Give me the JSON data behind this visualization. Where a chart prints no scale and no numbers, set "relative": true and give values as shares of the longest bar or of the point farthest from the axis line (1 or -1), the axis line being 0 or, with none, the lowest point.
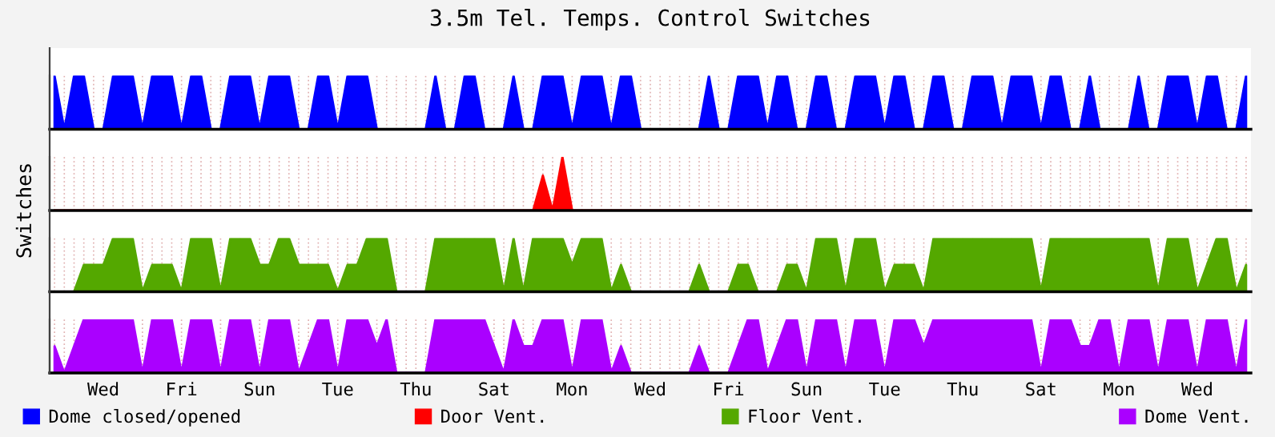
{
  "chart_data": [
    {
      "type": "area",
      "title": "3.5m Tel. Temps. Control Switches",
      "relative": true,
      "grid": "x",
      "tick_labels": false,
      "categories": [
        null,
        null,
        null,
        null,
        null,
        null,
        null,
        null,
        null,
        null,
        null,
        null,
        null,
        null,
        null,
        null,
        null,
        null,
        null,
        null,
        null,
        null,
        null,
        null,
        null,
        null,
        null,
        null,
        null,
        null,
        null,
        null,
        null,
        null,
        null,
        null,
        null,
        null,
        null,
        null,
        null,
        null,
        null,
        null,
        null,
        null,
        null,
        null,
        null,
        null,
        null,
        null,
        null,
        null,
        null,
        null,
        null,
        null,
        null,
        null,
        null,
        null,
        null,
        null,
        null,
        null,
        null,
        null,
        null,
        null,
        null,
        null,
        null,
        null,
        null,
        null,
        null,
        null,
        null,
        null,
        null,
        null,
        null,
        null,
        null,
        null,
        null,
        null,
        null,
        null,
        null,
        null,
        null,
        null,
        null,
        null,
        null,
        null,
        null,
        null,
        null,
        null,
        null,
        null,
        null,
        null,
        null,
        null,
        null,
        null,
        null,
        null,
        null,
        null,
        null,
        null,
        null,
        null,
        null,
        null,
        null,
        null,
        null
      ],
      "legend": "bottom",
      "series": [
        {
          "name": "Dome closed/opened",
          "color": "#0000ff",
          "values": [
            1,
            0,
            1,
            1,
            0,
            0,
            1,
            1,
            1,
            0,
            1,
            1,
            1,
            0,
            1,
            1,
            0,
            0,
            1,
            1,
            1,
            0,
            1,
            1,
            1,
            0,
            0,
            1,
            1,
            0,
            1,
            1,
            1,
            0,
            0,
            0,
            0,
            0,
            0,
            1,
            0,
            0,
            1,
            1,
            0,
            0,
            0,
            1,
            0,
            0,
            1,
            1,
            1,
            0,
            1,
            1,
            1,
            0,
            1,
            1,
            0,
            0,
            0,
            0,
            0,
            0,
            0,
            1,
            0,
            0,
            1,
            1,
            1,
            0,
            1,
            1,
            0,
            0,
            1,
            1,
            0,
            0,
            1,
            1,
            1,
            0,
            1,
            1,
            0,
            0,
            1,
            1,
            0,
            0,
            1,
            1,
            1,
            0,
            1,
            1,
            1,
            0,
            1,
            1,
            0,
            0,
            1,
            0,
            0,
            0,
            0,
            1,
            0,
            0,
            1,
            1,
            1,
            0,
            1,
            1,
            0,
            0,
            1
          ]
        }
      ]
    },
    {
      "type": "area",
      "ylabel": "Switches",
      "relative": true,
      "grid": "x",
      "tick_labels": false,
      "categories": [
        null,
        null,
        null,
        null,
        null,
        null,
        null,
        null,
        null,
        null,
        null,
        null,
        null,
        null,
        null,
        null,
        null,
        null,
        null,
        null,
        null,
        null,
        null,
        null,
        null,
        null,
        null,
        null,
        null,
        null,
        null,
        null,
        null,
        null,
        null,
        null,
        null,
        null,
        null,
        null,
        null,
        null,
        null,
        null,
        null,
        null,
        null,
        null,
        null,
        null,
        null,
        null,
        null,
        null,
        null,
        null,
        null,
        null,
        null,
        null,
        null,
        null,
        null,
        null,
        null,
        null,
        null,
        null,
        null,
        null,
        null,
        null,
        null,
        null,
        null,
        null,
        null,
        null,
        null,
        null,
        null,
        null,
        null,
        null,
        null,
        null,
        null,
        null,
        null,
        null,
        null,
        null,
        null,
        null,
        null,
        null,
        null,
        null,
        null,
        null,
        null,
        null,
        null,
        null,
        null,
        null,
        null,
        null,
        null,
        null,
        null,
        null,
        null,
        null,
        null,
        null,
        null,
        null,
        null,
        null,
        null,
        null,
        null
      ],
      "legend": "bottom",
      "series": [
        {
          "name": "Door Vent.",
          "color": "#ff0000",
          "values": [
            0,
            0,
            0,
            0,
            0,
            0,
            0,
            0,
            0,
            0,
            0,
            0,
            0,
            0,
            0,
            0,
            0,
            0,
            0,
            0,
            0,
            0,
            0,
            0,
            0,
            0,
            0,
            0,
            0,
            0,
            0,
            0,
            0,
            0,
            0,
            0,
            0,
            0,
            0,
            0,
            0,
            0,
            0,
            0,
            0,
            0,
            0,
            0,
            0,
            0,
            0.65,
            0,
            1,
            0,
            0,
            0,
            0,
            0,
            0,
            0,
            0,
            0,
            0,
            0,
            0,
            0,
            0,
            0,
            0,
            0,
            0,
            0,
            0,
            0,
            0,
            0,
            0,
            0,
            0,
            0,
            0,
            0,
            0,
            0,
            0,
            0,
            0,
            0,
            0,
            0,
            0,
            0,
            0,
            0,
            0,
            0,
            0,
            0,
            0,
            0,
            0,
            0,
            0,
            0,
            0,
            0,
            0,
            0,
            0,
            0,
            0,
            0,
            0,
            0,
            0,
            0,
            0,
            0,
            0,
            0,
            0,
            0,
            0
          ]
        }
      ]
    },
    {
      "type": "area",
      "relative": true,
      "grid": "x",
      "tick_labels": false,
      "categories": [
        null,
        null,
        null,
        null,
        null,
        null,
        null,
        null,
        null,
        null,
        null,
        null,
        null,
        null,
        null,
        null,
        null,
        null,
        null,
        null,
        null,
        null,
        null,
        null,
        null,
        null,
        null,
        null,
        null,
        null,
        null,
        null,
        null,
        null,
        null,
        null,
        null,
        null,
        null,
        null,
        null,
        null,
        null,
        null,
        null,
        null,
        null,
        null,
        null,
        null,
        null,
        null,
        null,
        null,
        null,
        null,
        null,
        null,
        null,
        null,
        null,
        null,
        null,
        null,
        null,
        null,
        null,
        null,
        null,
        null,
        null,
        null,
        null,
        null,
        null,
        null,
        null,
        null,
        null,
        null,
        null,
        null,
        null,
        null,
        null,
        null,
        null,
        null,
        null,
        null,
        null,
        null,
        null,
        null,
        null,
        null,
        null,
        null,
        null,
        null,
        null,
        null,
        null,
        null,
        null,
        null,
        null,
        null,
        null,
        null,
        null,
        null,
        null,
        null,
        null,
        null,
        null,
        null,
        null,
        null,
        null,
        null,
        null
      ],
      "legend": "bottom",
      "series": [
        {
          "name": "Floor Vent.",
          "color": "#54a800",
          "values": [
            0,
            0,
            0,
            0.5,
            0.5,
            0.5,
            1,
            1,
            1,
            0,
            0.5,
            0.5,
            0.5,
            0,
            1,
            1,
            1,
            0,
            1,
            1,
            1,
            0.5,
            0.5,
            1,
            1,
            0.5,
            0.5,
            0.5,
            0.5,
            0,
            0.5,
            0.5,
            1,
            1,
            1,
            0,
            0,
            0,
            0,
            1,
            1,
            1,
            1,
            1,
            1,
            1,
            0,
            1,
            0,
            1,
            1,
            1,
            1,
            0.5,
            1,
            1,
            1,
            0,
            0.5,
            0,
            0,
            0,
            0,
            0,
            0,
            0,
            0.5,
            0,
            0,
            0,
            0.5,
            0.5,
            0,
            0,
            0,
            0.5,
            0.5,
            0,
            1,
            1,
            1,
            0,
            1,
            1,
            1,
            0,
            0.5,
            0.5,
            0.5,
            0,
            1,
            1,
            1,
            1,
            1,
            1,
            1,
            1,
            1,
            1,
            1,
            0,
            1,
            1,
            1,
            1,
            1,
            1,
            1,
            1,
            1,
            1,
            1,
            0,
            1,
            1,
            1,
            0,
            0.5,
            1,
            1,
            0,
            0.5
          ]
        }
      ]
    },
    {
      "type": "area",
      "relative": true,
      "grid": "x",
      "tick_labels": "x",
      "categories": [
        null,
        null,
        null,
        null,
        null,
        "Wed",
        null,
        null,
        null,
        null,
        null,
        null,
        null,
        "Fri",
        null,
        null,
        null,
        null,
        null,
        null,
        null,
        "Sun",
        null,
        null,
        null,
        null,
        null,
        null,
        null,
        "Tue",
        null,
        null,
        null,
        null,
        null,
        null,
        null,
        "Thu",
        null,
        null,
        null,
        null,
        null,
        null,
        null,
        "Sat",
        null,
        null,
        null,
        null,
        null,
        null,
        null,
        "Mon",
        null,
        null,
        null,
        null,
        null,
        null,
        null,
        "Wed",
        null,
        null,
        null,
        null,
        null,
        null,
        null,
        "Fri",
        null,
        null,
        null,
        null,
        null,
        null,
        null,
        "Sun",
        null,
        null,
        null,
        null,
        null,
        null,
        null,
        "Tue",
        null,
        null,
        null,
        null,
        null,
        null,
        null,
        "Thu",
        null,
        null,
        null,
        null,
        null,
        null,
        null,
        "Sat",
        null,
        null,
        null,
        null,
        null,
        null,
        null,
        "Mon",
        null,
        null,
        null,
        null,
        null,
        null,
        null,
        "Wed",
        null,
        null,
        null,
        null,
        null
      ],
      "legend": "bottom",
      "series": [
        {
          "name": "Dome Vent.",
          "color": "#aa00ff",
          "values": [
            0.5,
            0,
            0.5,
            1,
            1,
            1,
            1,
            1,
            1,
            0,
            1,
            1,
            1,
            0,
            1,
            1,
            1,
            0,
            1,
            1,
            1,
            0,
            1,
            1,
            1,
            0,
            0.5,
            1,
            1,
            0,
            1,
            1,
            1,
            0.5,
            1,
            0,
            0,
            0,
            0,
            1,
            1,
            1,
            1,
            1,
            1,
            0.5,
            0,
            1,
            0.5,
            0.5,
            1,
            1,
            1,
            0,
            1,
            1,
            1,
            0,
            0.5,
            0,
            0,
            0,
            0,
            0,
            0,
            0,
            0.5,
            0,
            0,
            0,
            0.5,
            1,
            1,
            0,
            0.5,
            1,
            1,
            0,
            1,
            1,
            1,
            0,
            1,
            1,
            1,
            0,
            1,
            1,
            1,
            0.5,
            1,
            1,
            1,
            1,
            1,
            1,
            1,
            1,
            1,
            1,
            1,
            0,
            1,
            1,
            1,
            0.5,
            0.5,
            1,
            1,
            0,
            1,
            1,
            1,
            0,
            1,
            1,
            1,
            0,
            1,
            1,
            1,
            0,
            1
          ]
        }
      ]
    }
  ]
}
